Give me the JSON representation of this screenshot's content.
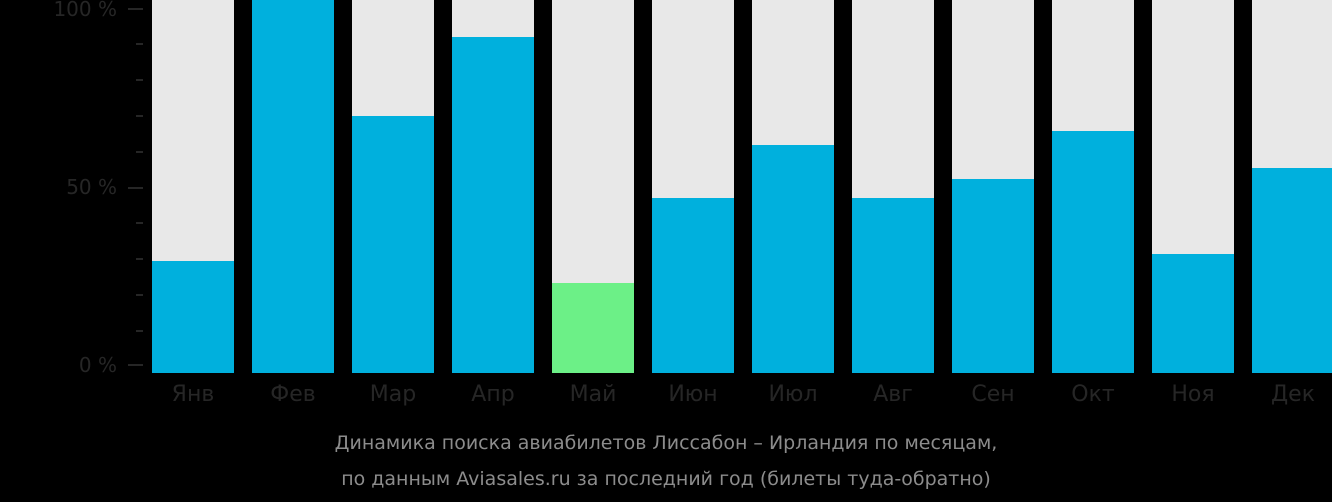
{
  "chart_data": {
    "type": "bar",
    "title": "Динамика поиска авиабилетов Лиссабон – Ирландия по месяцам,",
    "subtitle": "по данным Aviasales.ru за последний год (билеты туда-обратно)",
    "xlabel": "",
    "ylabel": "",
    "ylim": [
      0,
      100
    ],
    "yticks": [
      "0 %",
      "50 %",
      "100 %"
    ],
    "categories": [
      "Янв",
      "Фев",
      "Мар",
      "Апр",
      "Май",
      "Июн",
      "Июл",
      "Авг",
      "Сен",
      "Окт",
      "Ноя",
      "Дек"
    ],
    "values": [
      30,
      100,
      69,
      90,
      24,
      47,
      61,
      47,
      52,
      65,
      32,
      55
    ],
    "highlight_min_index": 4,
    "grid": false,
    "legend": "none",
    "colors": {
      "bar": "#00b0dd",
      "min_bar": "#6cf087",
      "background_bar": "#e8e8e8",
      "axis_text": "#262626",
      "caption_text": "#8c8c8c"
    }
  },
  "axis": {
    "y_top": "100 %",
    "y_mid": "50 %",
    "y_bottom": "0 %"
  },
  "caption": {
    "line1": "Динамика поиска авиабилетов Лиссабон – Ирландия по месяцам,",
    "line2": "по данным Aviasales.ru за последний год (билеты туда-обратно)"
  }
}
